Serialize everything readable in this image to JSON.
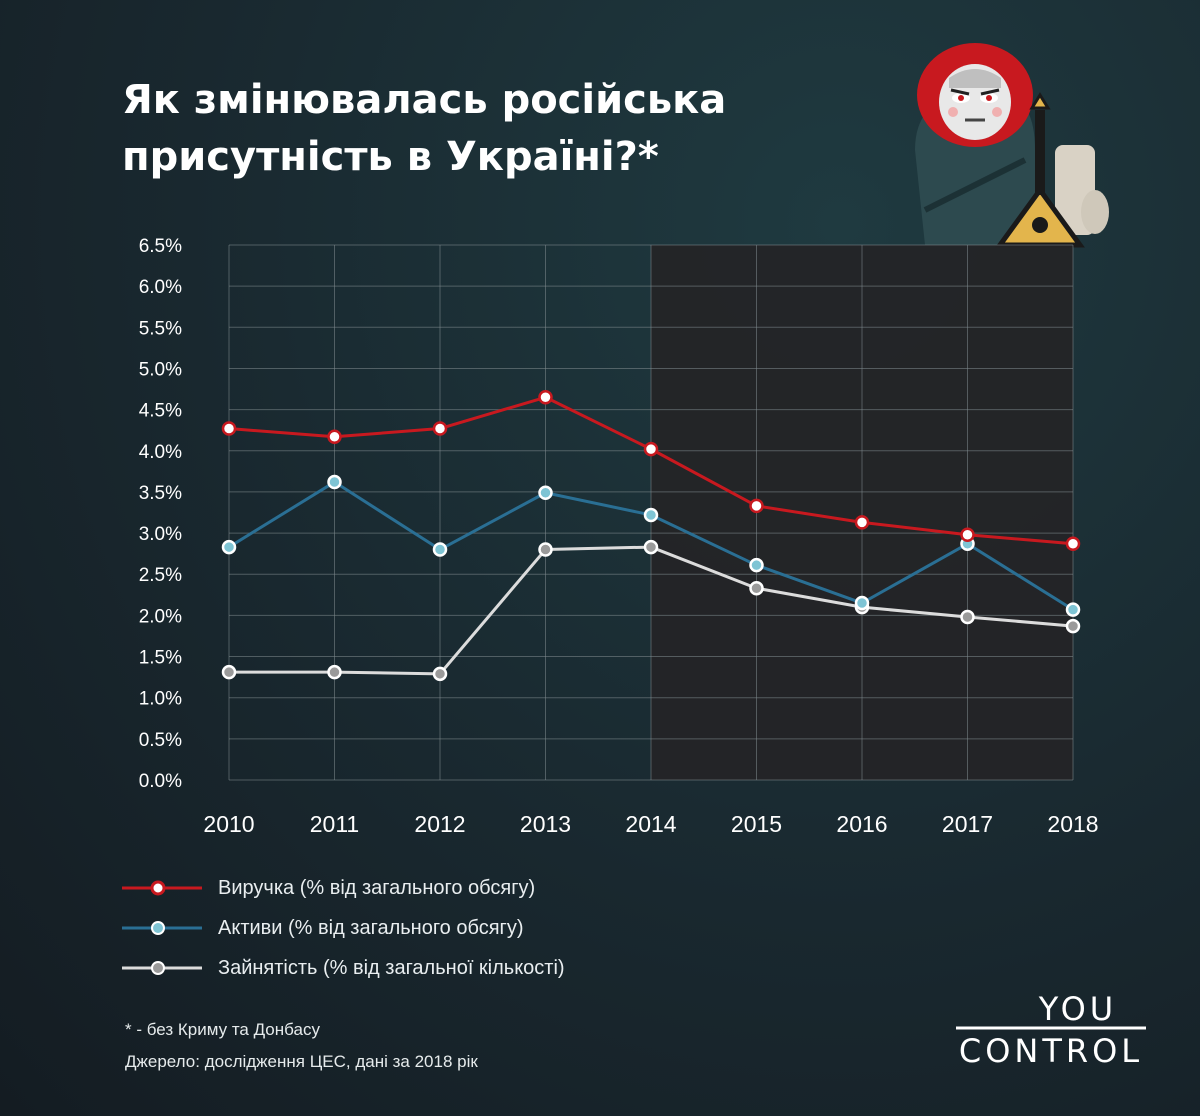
{
  "title": {
    "line1": "Як змінювалась російська",
    "line2": "присутність в Україні?*"
  },
  "chart_data": {
    "type": "line",
    "title": "Як змінювалась російська присутність в Україні?*",
    "categories": [
      "2010",
      "2011",
      "2012",
      "2013",
      "2014",
      "2015",
      "2016",
      "2017",
      "2018"
    ],
    "y_ticks": [
      "0.0%",
      "0.5%",
      "1.0%",
      "1.5%",
      "2.0%",
      "2.5%",
      "3.0%",
      "3.5%",
      "4.0%",
      "4.5%",
      "5.0%",
      "5.5%",
      "6.0%",
      "6.5%"
    ],
    "ylim": [
      0,
      6.5
    ],
    "grid": true,
    "shaded_from": "2014",
    "series": [
      {
        "name": "Виручка (% від загального обсягу)",
        "color": "#c8191f",
        "values": [
          4.27,
          4.17,
          4.27,
          4.65,
          4.02,
          3.33,
          3.13,
          2.98,
          2.87
        ]
      },
      {
        "name": "Активи (% від загального обсягу)",
        "color": "#2a6f94",
        "values": [
          2.83,
          3.62,
          2.8,
          3.49,
          3.22,
          2.61,
          2.15,
          2.87,
          2.07
        ]
      },
      {
        "name": "Зайнятість (% від загальної кількості)",
        "color": "#dcdcdc",
        "values": [
          1.31,
          1.31,
          1.29,
          2.8,
          2.83,
          2.33,
          2.1,
          1.98,
          1.87
        ]
      }
    ]
  },
  "legend": [
    {
      "label": "Виручка (% від загального обсягу)",
      "color": "#c8191f",
      "dot": "#ffffff"
    },
    {
      "label": "Активи (% від загального обсягу)",
      "color": "#2a6f94",
      "dot": "#7ec4d4"
    },
    {
      "label": "Зайнятість (% від загальної кількості)",
      "color": "#dcdcdc",
      "dot": "#9a9a9a"
    }
  ],
  "notes": {
    "footnote": "* - без Криму та Донбасу",
    "source": "Джерело: дослідження ЦЕС, дані за 2018 рік"
  },
  "logo": {
    "line1": "YOU",
    "line2": "CONTROL"
  }
}
